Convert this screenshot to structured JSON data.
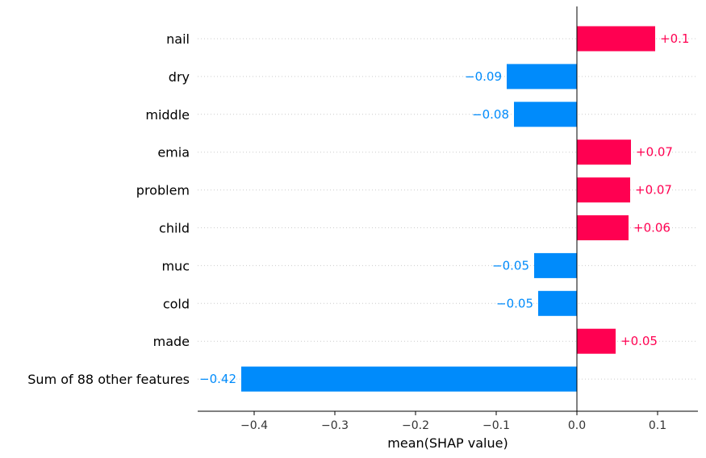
{
  "chart_data": {
    "type": "bar",
    "orientation": "horizontal",
    "xlabel": "mean(SHAP value)",
    "xlim": [
      -0.47,
      0.15
    ],
    "xticks": [
      -0.4,
      -0.3,
      -0.2,
      -0.1,
      0.0,
      0.1
    ],
    "xtick_labels": [
      "−0.4",
      "−0.3",
      "−0.2",
      "−0.1",
      "0.0",
      "0.1"
    ],
    "grid": "dotted horizontal guides",
    "colors": {
      "positive": "#ff0051",
      "negative": "#008bfb",
      "axis": "#000000"
    },
    "categories": [
      "nail",
      "dry",
      "middle",
      "emia",
      "problem",
      "child",
      "muc",
      "cold",
      "made",
      "Sum of 88 other features"
    ],
    "values": [
      0.097,
      -0.087,
      -0.078,
      0.067,
      0.066,
      0.064,
      -0.053,
      -0.048,
      0.048,
      -0.416
    ],
    "value_labels": [
      "+0.1",
      "−0.09",
      "−0.08",
      "+0.07",
      "+0.07",
      "+0.06",
      "−0.05",
      "−0.05",
      "+0.05",
      "−0.42"
    ]
  }
}
